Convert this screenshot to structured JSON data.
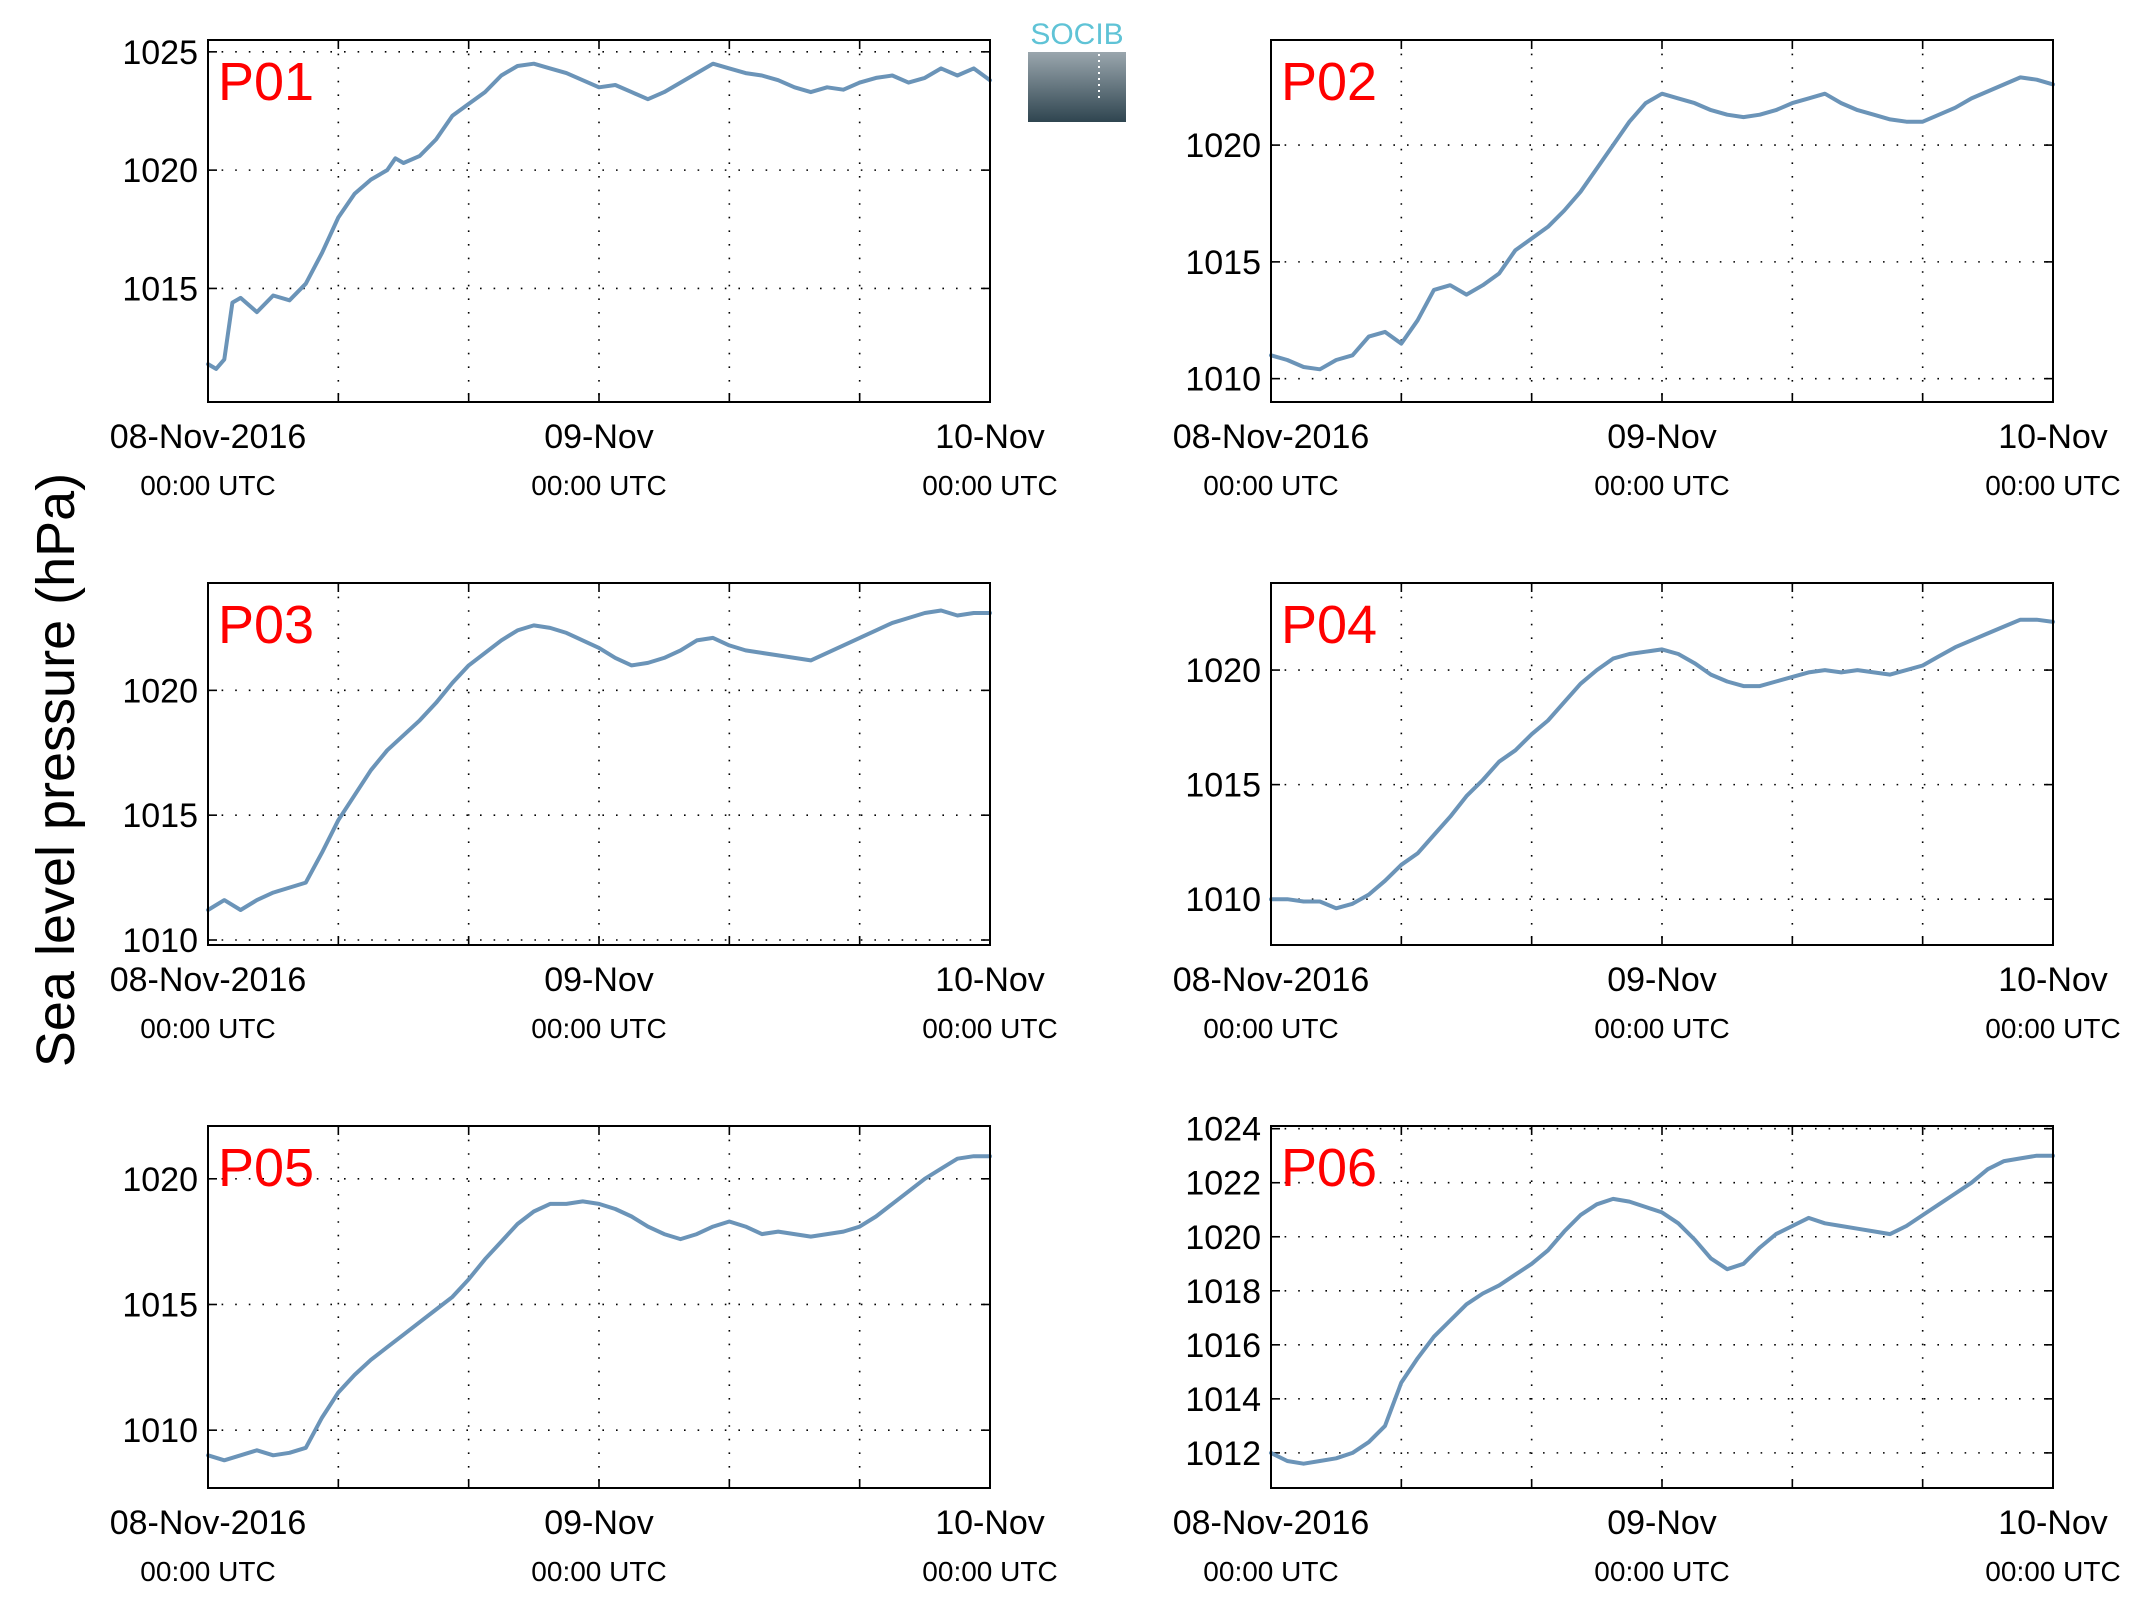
{
  "figure": {
    "ylabel": "Sea level pressure (hPa)",
    "line_color": "#6b94b8",
    "label_color": "#ff0000",
    "logo": {
      "text": "SOCIB",
      "text_color": "#5fc3d6",
      "top_color": "#9aa6ad",
      "bottom_color": "#2f4550"
    }
  },
  "chart_data": [
    {
      "type": "line",
      "panel": "P01",
      "title": "P01",
      "xlabel": "",
      "ylabel": "Sea level pressure (hPa)",
      "grid": true,
      "xlim": [
        0,
        48
      ],
      "ylim": [
        1010.2,
        1025.5
      ],
      "yticks": [
        1015,
        1020,
        1025
      ],
      "xticks": [
        {
          "x": 0,
          "date": "08-Nov-2016",
          "time": "00:00 UTC"
        },
        {
          "x": 24,
          "date": "09-Nov",
          "time": "00:00 UTC"
        },
        {
          "x": 48,
          "date": "10-Nov",
          "time": "00:00 UTC"
        }
      ],
      "series": [
        {
          "x": [
            0,
            0.5,
            1,
            1.5,
            2,
            3,
            4,
            5,
            6,
            7,
            8,
            9,
            10,
            11,
            11.5,
            12,
            13,
            14,
            15,
            16,
            17,
            18,
            19,
            20,
            21,
            22,
            23,
            24,
            25,
            26,
            27,
            28,
            29,
            30,
            31,
            32,
            33,
            34,
            35,
            36,
            37,
            38,
            39,
            40,
            41,
            42,
            43,
            44,
            45,
            46,
            47,
            48
          ],
          "y": [
            1011.8,
            1011.6,
            1012.0,
            1014.4,
            1014.6,
            1014.0,
            1014.7,
            1014.5,
            1015.2,
            1016.5,
            1018.0,
            1019.0,
            1019.6,
            1020.0,
            1020.5,
            1020.3,
            1020.6,
            1021.3,
            1022.3,
            1022.8,
            1023.3,
            1024.0,
            1024.4,
            1024.5,
            1024.3,
            1024.1,
            1023.8,
            1023.5,
            1023.6,
            1023.3,
            1023.0,
            1023.3,
            1023.7,
            1024.1,
            1024.5,
            1024.3,
            1024.1,
            1024.0,
            1023.8,
            1023.5,
            1023.3,
            1023.5,
            1023.4,
            1023.7,
            1023.9,
            1024.0,
            1023.7,
            1023.9,
            1024.3,
            1024.0,
            1024.3,
            1023.8
          ]
        }
      ]
    },
    {
      "type": "line",
      "panel": "P02",
      "title": "P02",
      "xlabel": "",
      "ylabel": "Sea level pressure (hPa)",
      "grid": true,
      "xlim": [
        0,
        48
      ],
      "ylim": [
        1009.0,
        1024.5
      ],
      "yticks": [
        1010,
        1015,
        1020
      ],
      "xticks": [
        {
          "x": 0,
          "date": "08-Nov-2016",
          "time": "00:00 UTC"
        },
        {
          "x": 24,
          "date": "09-Nov",
          "time": "00:00 UTC"
        },
        {
          "x": 48,
          "date": "10-Nov",
          "time": "00:00 UTC"
        }
      ],
      "series": [
        {
          "x": [
            0,
            1,
            2,
            3,
            4,
            5,
            6,
            7,
            8,
            9,
            10,
            11,
            12,
            13,
            14,
            15,
            16,
            17,
            18,
            19,
            20,
            21,
            22,
            23,
            24,
            25,
            26,
            27,
            28,
            29,
            30,
            31,
            32,
            33,
            34,
            35,
            36,
            37,
            38,
            39,
            40,
            41,
            42,
            43,
            44,
            45,
            46,
            47,
            48
          ],
          "y": [
            1011.0,
            1010.8,
            1010.5,
            1010.4,
            1010.8,
            1011.0,
            1011.8,
            1012.0,
            1011.5,
            1012.5,
            1013.8,
            1014.0,
            1013.6,
            1014.0,
            1014.5,
            1015.5,
            1016.0,
            1016.5,
            1017.2,
            1018.0,
            1019.0,
            1020.0,
            1021.0,
            1021.8,
            1022.2,
            1022.0,
            1021.8,
            1021.5,
            1021.3,
            1021.2,
            1021.3,
            1021.5,
            1021.8,
            1022.0,
            1022.2,
            1021.8,
            1021.5,
            1021.3,
            1021.1,
            1021.0,
            1021.0,
            1021.3,
            1021.6,
            1022.0,
            1022.3,
            1022.6,
            1022.9,
            1022.8,
            1022.6
          ]
        }
      ]
    },
    {
      "type": "line",
      "panel": "P03",
      "title": "P03",
      "xlabel": "",
      "ylabel": "Sea level pressure (hPa)",
      "grid": true,
      "xlim": [
        0,
        48
      ],
      "ylim": [
        1009.8,
        1024.3
      ],
      "yticks": [
        1010,
        1015,
        1020
      ],
      "xticks": [
        {
          "x": 0,
          "date": "08-Nov-2016",
          "time": "00:00 UTC"
        },
        {
          "x": 24,
          "date": "09-Nov",
          "time": "00:00 UTC"
        },
        {
          "x": 48,
          "date": "10-Nov",
          "time": "00:00 UTC"
        }
      ],
      "series": [
        {
          "x": [
            0,
            1,
            2,
            3,
            4,
            5,
            6,
            7,
            8,
            9,
            10,
            11,
            12,
            13,
            14,
            15,
            16,
            17,
            18,
            19,
            20,
            21,
            22,
            23,
            24,
            25,
            26,
            27,
            28,
            29,
            30,
            31,
            32,
            33,
            34,
            35,
            36,
            37,
            38,
            39,
            40,
            41,
            42,
            43,
            44,
            45,
            46,
            47,
            48
          ],
          "y": [
            1011.2,
            1011.6,
            1011.2,
            1011.6,
            1011.9,
            1012.1,
            1012.3,
            1013.5,
            1014.8,
            1015.8,
            1016.8,
            1017.6,
            1018.2,
            1018.8,
            1019.5,
            1020.3,
            1021.0,
            1021.5,
            1022.0,
            1022.4,
            1022.6,
            1022.5,
            1022.3,
            1022.0,
            1021.7,
            1021.3,
            1021.0,
            1021.1,
            1021.3,
            1021.6,
            1022.0,
            1022.1,
            1021.8,
            1021.6,
            1021.5,
            1021.4,
            1021.3,
            1021.2,
            1021.5,
            1021.8,
            1022.1,
            1022.4,
            1022.7,
            1022.9,
            1023.1,
            1023.2,
            1023.0,
            1023.1,
            1023.1
          ]
        }
      ]
    },
    {
      "type": "line",
      "panel": "P04",
      "title": "P04",
      "xlabel": "",
      "ylabel": "Sea level pressure (hPa)",
      "grid": true,
      "xlim": [
        0,
        48
      ],
      "ylim": [
        1008.0,
        1023.8
      ],
      "yticks": [
        1010,
        1015,
        1020
      ],
      "xticks": [
        {
          "x": 0,
          "date": "08-Nov-2016",
          "time": "00:00 UTC"
        },
        {
          "x": 24,
          "date": "09-Nov",
          "time": "00:00 UTC"
        },
        {
          "x": 48,
          "date": "10-Nov",
          "time": "00:00 UTC"
        }
      ],
      "series": [
        {
          "x": [
            0,
            1,
            2,
            3,
            4,
            5,
            6,
            7,
            8,
            9,
            10,
            11,
            12,
            13,
            14,
            15,
            16,
            17,
            18,
            19,
            20,
            21,
            22,
            23,
            24,
            25,
            26,
            27,
            28,
            29,
            30,
            31,
            32,
            33,
            34,
            35,
            36,
            37,
            38,
            39,
            40,
            41,
            42,
            43,
            44,
            45,
            46,
            47,
            48
          ],
          "y": [
            1010.0,
            1010.0,
            1009.9,
            1009.9,
            1009.6,
            1009.8,
            1010.2,
            1010.8,
            1011.5,
            1012.0,
            1012.8,
            1013.6,
            1014.5,
            1015.2,
            1016.0,
            1016.5,
            1017.2,
            1017.8,
            1018.6,
            1019.4,
            1020.0,
            1020.5,
            1020.7,
            1020.8,
            1020.9,
            1020.7,
            1020.3,
            1019.8,
            1019.5,
            1019.3,
            1019.3,
            1019.5,
            1019.7,
            1019.9,
            1020.0,
            1019.9,
            1020.0,
            1019.9,
            1019.8,
            1020.0,
            1020.2,
            1020.6,
            1021.0,
            1021.3,
            1021.6,
            1021.9,
            1022.2,
            1022.2,
            1022.1
          ]
        }
      ]
    },
    {
      "type": "line",
      "panel": "P05",
      "title": "P05",
      "xlabel": "",
      "ylabel": "Sea level pressure (hPa)",
      "grid": true,
      "xlim": [
        0,
        48
      ],
      "ylim": [
        1007.7,
        1022.1
      ],
      "yticks": [
        1010,
        1015,
        1020
      ],
      "xticks": [
        {
          "x": 0,
          "date": "08-Nov-2016",
          "time": "00:00 UTC"
        },
        {
          "x": 24,
          "date": "09-Nov",
          "time": "00:00 UTC"
        },
        {
          "x": 48,
          "date": "10-Nov",
          "time": "00:00 UTC"
        }
      ],
      "series": [
        {
          "x": [
            0,
            1,
            2,
            3,
            4,
            5,
            6,
            7,
            8,
            9,
            10,
            11,
            12,
            13,
            14,
            15,
            16,
            17,
            18,
            19,
            20,
            21,
            22,
            23,
            24,
            25,
            26,
            27,
            28,
            29,
            30,
            31,
            32,
            33,
            34,
            35,
            36,
            37,
            38,
            39,
            40,
            41,
            42,
            43,
            44,
            45,
            46,
            47,
            48
          ],
          "y": [
            1009.0,
            1008.8,
            1009.0,
            1009.2,
            1009.0,
            1009.1,
            1009.3,
            1010.5,
            1011.5,
            1012.2,
            1012.8,
            1013.3,
            1013.8,
            1014.3,
            1014.8,
            1015.3,
            1016.0,
            1016.8,
            1017.5,
            1018.2,
            1018.7,
            1019.0,
            1019.0,
            1019.1,
            1019.0,
            1018.8,
            1018.5,
            1018.1,
            1017.8,
            1017.6,
            1017.8,
            1018.1,
            1018.3,
            1018.1,
            1017.8,
            1017.9,
            1017.8,
            1017.7,
            1017.8,
            1017.9,
            1018.1,
            1018.5,
            1019.0,
            1019.5,
            1020.0,
            1020.4,
            1020.8,
            1020.9,
            1020.9
          ]
        }
      ]
    },
    {
      "type": "line",
      "panel": "P06",
      "title": "P06",
      "xlabel": "",
      "ylabel": "Sea level pressure (hPa)",
      "grid": true,
      "xlim": [
        0,
        48
      ],
      "ylim": [
        1010.7,
        1024.1
      ],
      "yticks": [
        1012,
        1014,
        1016,
        1018,
        1020,
        1022,
        1024
      ],
      "xticks": [
        {
          "x": 0,
          "date": "08-Nov-2016",
          "time": "00:00 UTC"
        },
        {
          "x": 24,
          "date": "09-Nov",
          "time": "00:00 UTC"
        },
        {
          "x": 48,
          "date": "10-Nov",
          "time": "00:00 UTC"
        }
      ],
      "series": [
        {
          "x": [
            0,
            1,
            2,
            3,
            4,
            5,
            6,
            7,
            8,
            9,
            10,
            11,
            12,
            13,
            14,
            15,
            16,
            17,
            18,
            19,
            20,
            21,
            22,
            23,
            24,
            25,
            26,
            27,
            28,
            29,
            30,
            31,
            32,
            33,
            34,
            35,
            36,
            37,
            38,
            39,
            40,
            41,
            42,
            43,
            44,
            45,
            46,
            47,
            48
          ],
          "y": [
            1012.0,
            1011.7,
            1011.6,
            1011.7,
            1011.8,
            1012.0,
            1012.4,
            1013.0,
            1014.6,
            1015.5,
            1016.3,
            1016.9,
            1017.5,
            1017.9,
            1018.2,
            1018.6,
            1019.0,
            1019.5,
            1020.2,
            1020.8,
            1021.2,
            1021.4,
            1021.3,
            1021.1,
            1020.9,
            1020.5,
            1019.9,
            1019.2,
            1018.8,
            1019.0,
            1019.6,
            1020.1,
            1020.4,
            1020.7,
            1020.5,
            1020.4,
            1020.3,
            1020.2,
            1020.1,
            1020.4,
            1020.8,
            1021.2,
            1021.6,
            1022.0,
            1022.5,
            1022.8,
            1022.9,
            1023.0,
            1023.0
          ]
        }
      ]
    }
  ]
}
